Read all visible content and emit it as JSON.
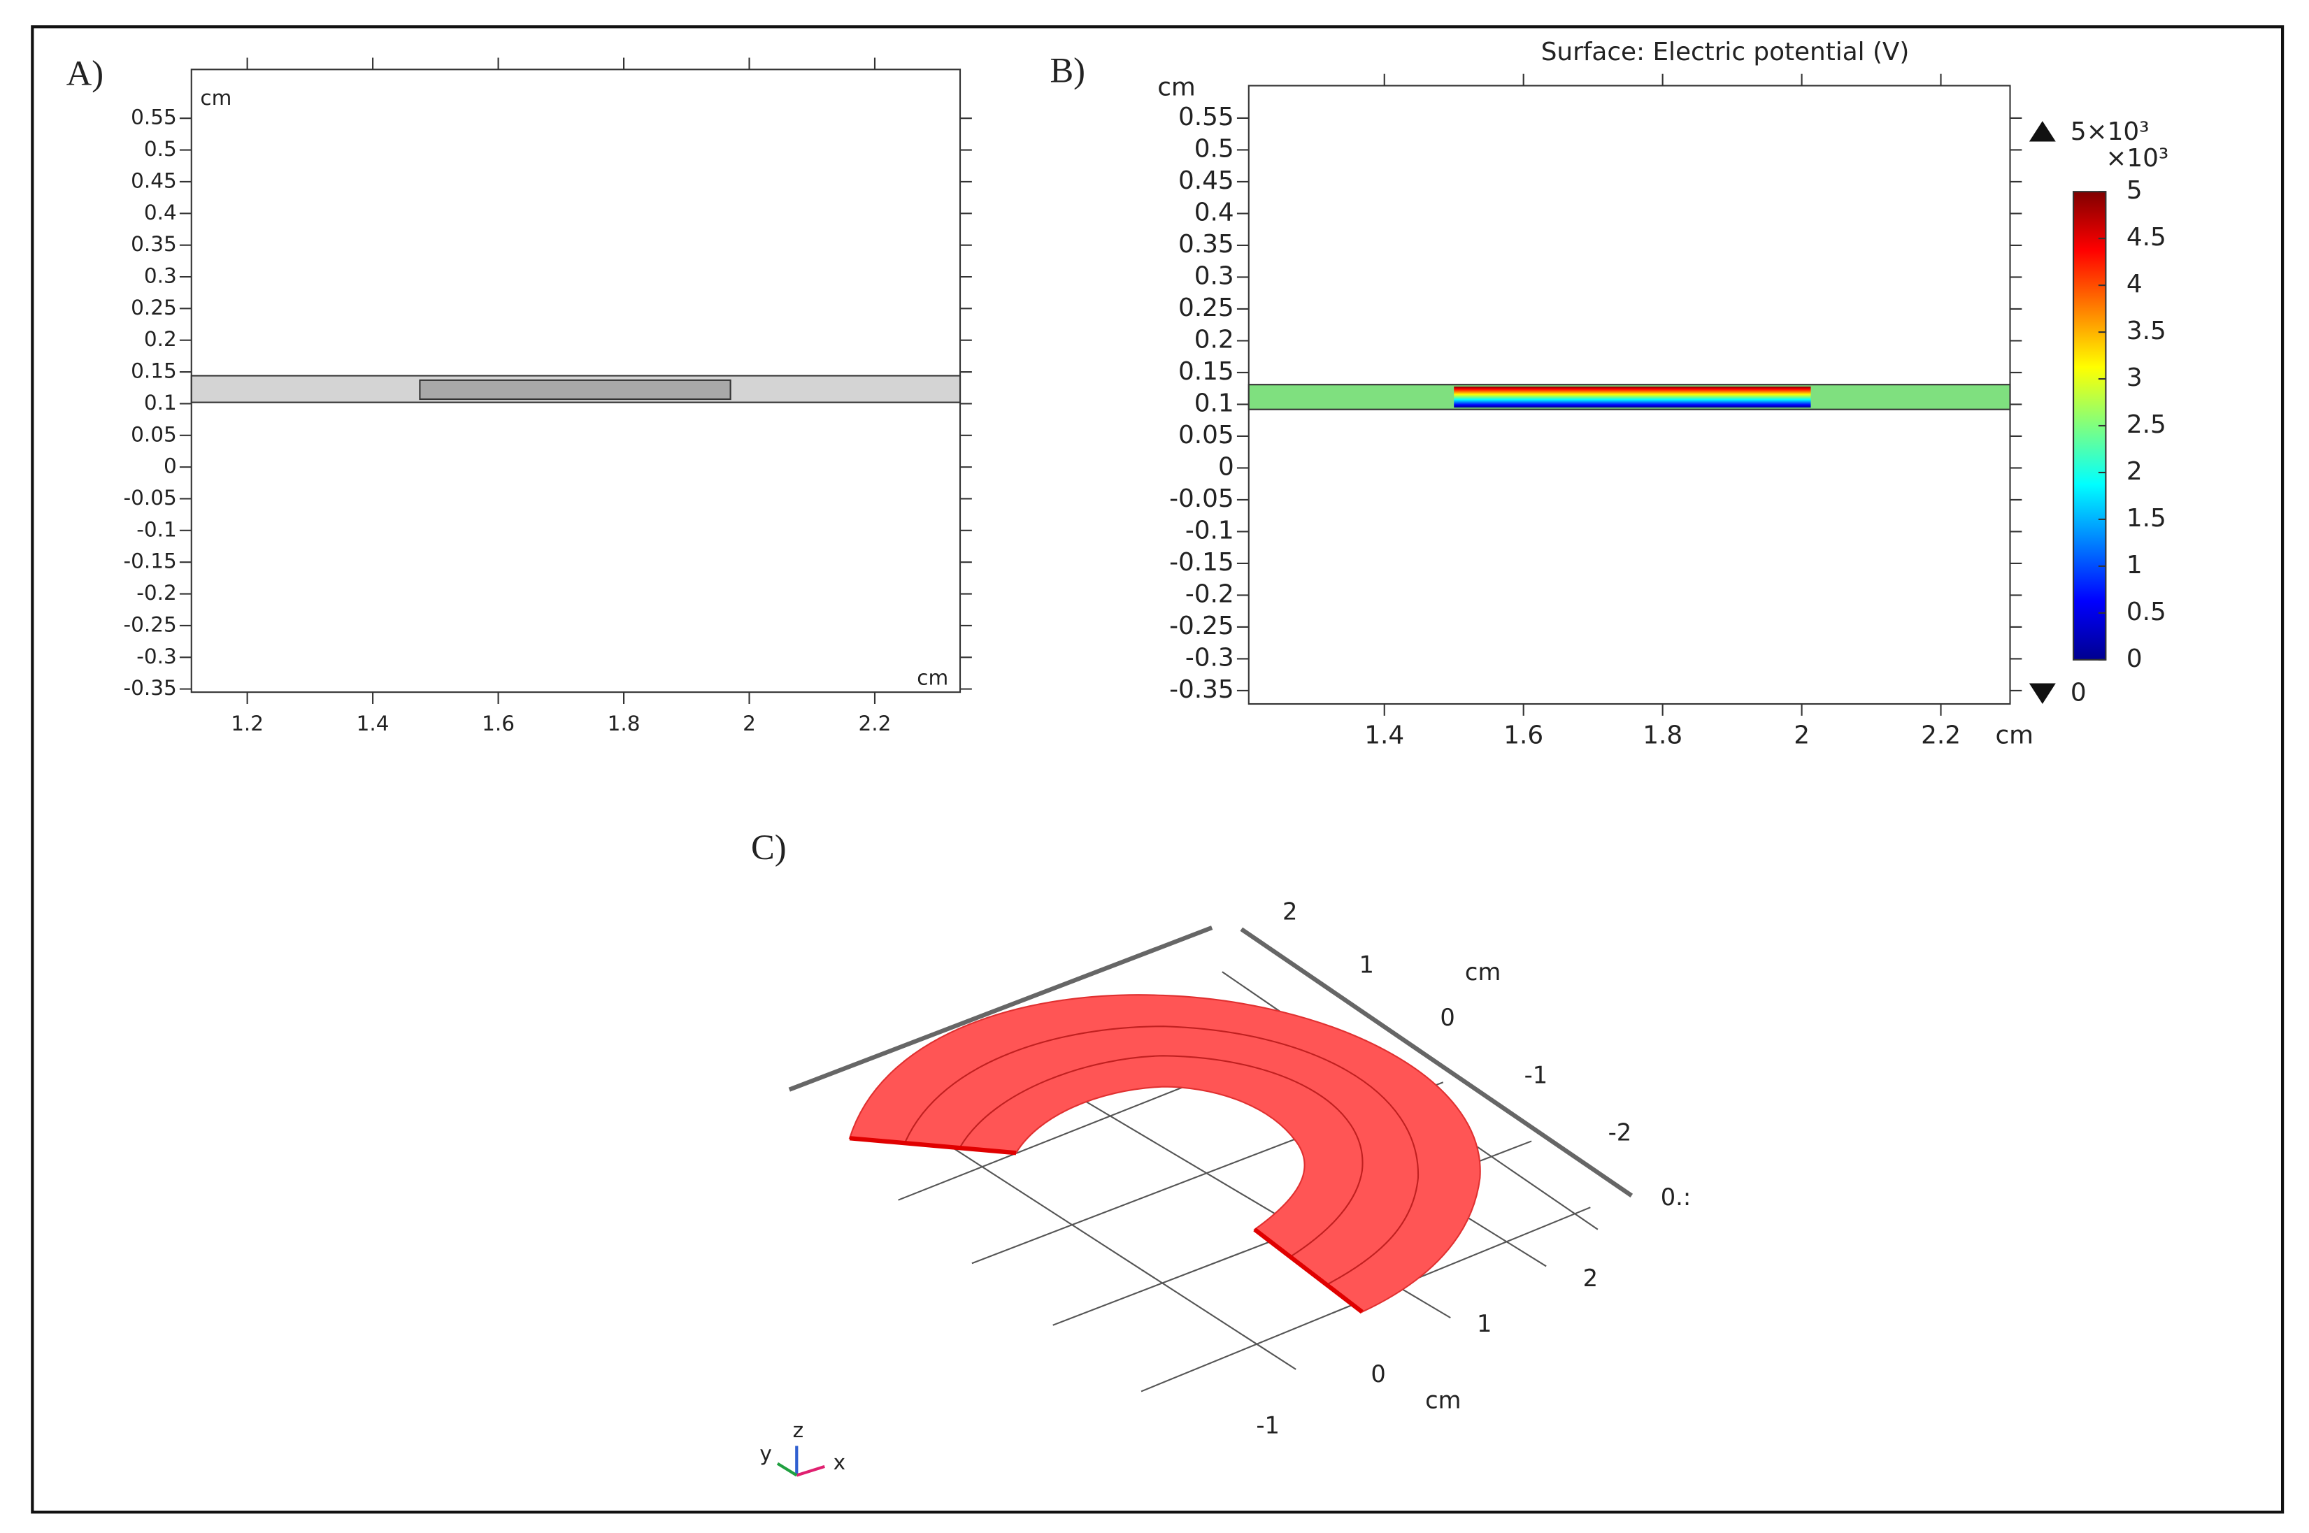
{
  "chart_data": [
    {
      "type": "geometry",
      "label": "A)",
      "xlim": [
        1.111,
        2.336
      ],
      "ylim": [
        -0.355,
        0.627
      ],
      "xticks": [
        1.2,
        1.4,
        1.6,
        1.8,
        2,
        2.2
      ],
      "yticks": [
        0.55,
        0.5,
        0.45,
        0.4,
        0.35,
        0.3,
        0.25,
        0.2,
        0.15,
        0.1,
        0.05,
        0,
        -0.05,
        -0.1,
        -0.15,
        -0.2,
        -0.25,
        -0.3,
        -0.35
      ],
      "x_unit": "cm",
      "y_unit": "cm",
      "shapes": [
        {
          "x": [
            1.111,
            2.336
          ],
          "y": [
            0.102,
            0.144
          ],
          "color": "#d4d4d4"
        },
        {
          "x": [
            1.475,
            1.97
          ],
          "y": [
            0.107,
            0.137
          ],
          "color": "#a9a9a9"
        }
      ]
    },
    {
      "type": "surface",
      "label": "B)",
      "title": "Surface: Electric potential (V)",
      "xlim": [
        1.205,
        2.2995
      ],
      "ylim": [
        -0.371,
        0.601
      ],
      "xticks": [
        1.4,
        1.6,
        1.8,
        2,
        2.2
      ],
      "yticks": [
        0.55,
        0.5,
        0.45,
        0.4,
        0.35,
        0.3,
        0.25,
        0.2,
        0.15,
        0.1,
        0.05,
        0,
        -0.05,
        -0.1,
        -0.15,
        -0.2,
        -0.25,
        -0.3,
        -0.35
      ],
      "x_unit": "cm",
      "y_unit": "cm",
      "band": {
        "x": [
          1.205,
          2.2995
        ],
        "y": [
          0.092,
          0.131
        ],
        "color": "#7fe07f"
      },
      "electrode": {
        "x": [
          1.5,
          2.013
        ],
        "y": [
          0.095,
          0.128
        ]
      },
      "colorbar": {
        "lim": [
          0,
          5
        ],
        "ticks": [
          0,
          0.5,
          1,
          1.5,
          2,
          2.5,
          3,
          3.5,
          4,
          4.5,
          5
        ],
        "multiplier": "×10³",
        "max_label": "5×10³",
        "min_label": "0"
      }
    },
    {
      "type": "3d",
      "label": "C)",
      "axis1_ticks": [
        "2",
        "1",
        "0",
        "-1",
        "-2",
        "0.:"
      ],
      "axis1_unit": "cm",
      "axis2_ticks": [
        "2",
        "1",
        "0",
        "-1"
      ],
      "axis2_unit": "cm",
      "triad": [
        "y",
        "z",
        "x"
      ]
    }
  ]
}
